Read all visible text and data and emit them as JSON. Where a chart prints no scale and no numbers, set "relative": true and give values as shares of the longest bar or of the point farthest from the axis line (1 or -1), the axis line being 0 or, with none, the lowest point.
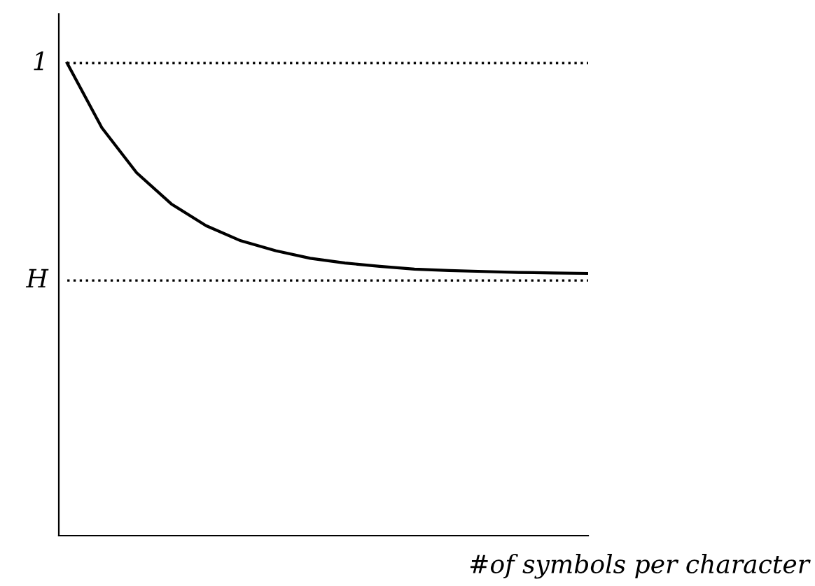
{
  "chart_data": {
    "type": "line",
    "relative": true,
    "xlabel": "#of symbols per character",
    "categories": [
      null,
      null,
      null,
      null,
      null,
      null,
      null,
      null,
      null,
      null,
      null,
      null,
      null,
      null,
      null,
      null
    ],
    "series": [
      {
        "color": "#000000",
        "values": [
          1.0,
          0.863,
          0.768,
          0.702,
          0.656,
          0.624,
          0.603,
          0.587,
          0.577,
          0.57,
          0.564,
          0.561,
          0.559,
          0.557,
          0.556,
          0.555
        ]
      }
    ],
    "ref_lines": [
      {
        "axis": "y",
        "value": 1.0,
        "label": "1",
        "color": "#000000",
        "line_style": "dotted"
      },
      {
        "axis": "y",
        "value": 0.54,
        "label": "H",
        "color": "#000000",
        "line_style": "dotted"
      }
    ]
  }
}
